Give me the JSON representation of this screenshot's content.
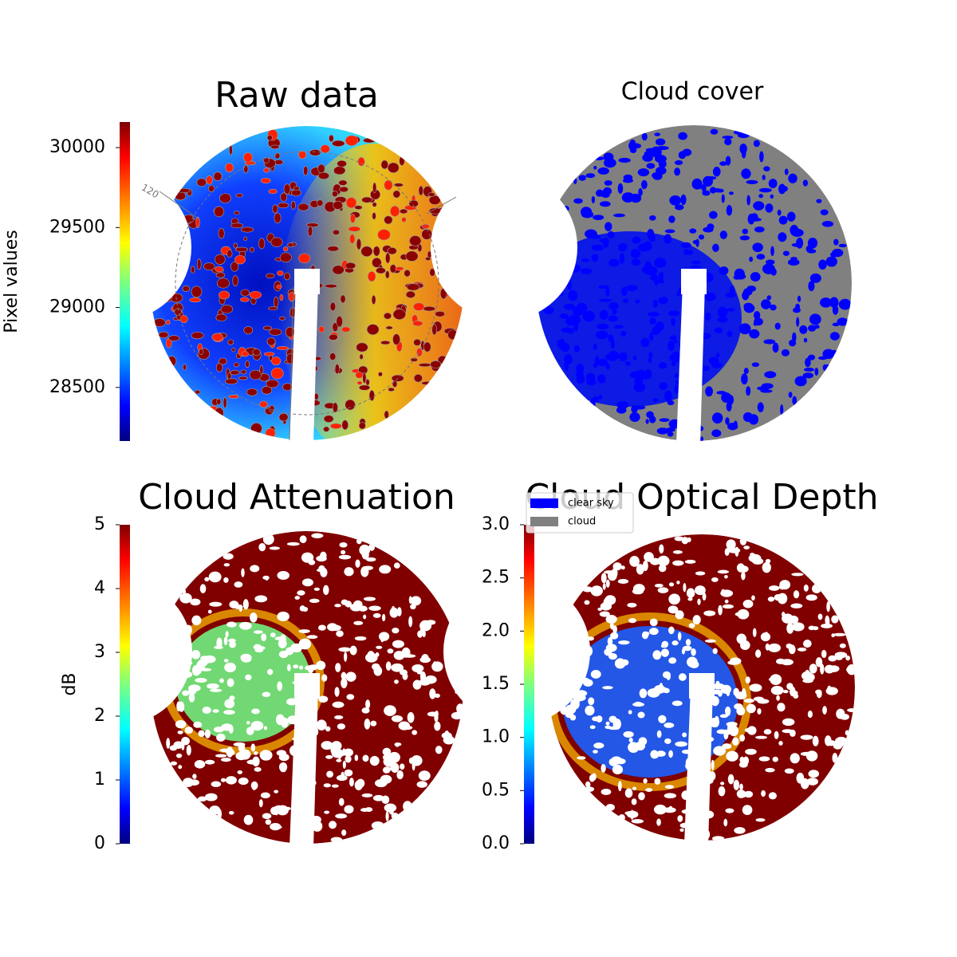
{
  "chart_data": [
    {
      "type": "image",
      "title": "Raw data",
      "colormap": "jet",
      "annotations": [
        "120"
      ],
      "colorbar": {
        "label": "Pixel values",
        "lim": [
          28165,
          30160
        ],
        "ticks": [
          28500,
          29000,
          29500,
          30000
        ]
      }
    },
    {
      "type": "image",
      "title": "Cloud cover",
      "legend": {
        "series": [
          {
            "name": "clear sky",
            "color": "#0000ff"
          },
          {
            "name": "cloud",
            "color": "#808080"
          }
        ]
      }
    },
    {
      "type": "image",
      "title": "Cloud Attenuation",
      "colormap": "jet",
      "colorbar": {
        "label": "dB",
        "lim": [
          0,
          5
        ],
        "ticks": [
          0,
          1,
          2,
          3,
          4,
          5
        ]
      }
    },
    {
      "type": "image",
      "title": "Cloud Optical Depth",
      "colormap": "jet",
      "colorbar": {
        "lim": [
          0,
          3
        ],
        "ticks": [
          {
            "value": 0,
            "label": "0.0"
          },
          0.5,
          {
            "value": 1,
            "label": "1.0"
          },
          1.5,
          {
            "value": 2,
            "label": "2.0"
          },
          2.5,
          {
            "value": 3,
            "label": "3.0"
          }
        ]
      }
    }
  ]
}
